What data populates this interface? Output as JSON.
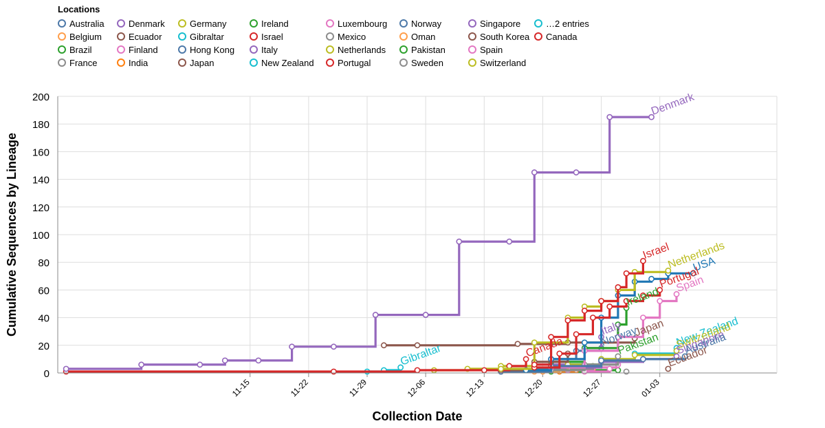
{
  "chart_data": {
    "type": "line",
    "step": true,
    "legend": {
      "title": "Locations",
      "placement": "top-left",
      "entries": [
        {
          "name": "Australia",
          "color": "#4c78a8"
        },
        {
          "name": "Belgium",
          "color": "#ff9e4a"
        },
        {
          "name": "Brazil",
          "color": "#2ca02c"
        },
        {
          "name": "France",
          "color": "#8c8c8c"
        },
        {
          "name": "Denmark",
          "color": "#9467bd"
        },
        {
          "name": "Ecuador",
          "color": "#8c564b"
        },
        {
          "name": "Finland",
          "color": "#e377c2"
        },
        {
          "name": "India",
          "color": "#ff7f0e"
        },
        {
          "name": "Germany",
          "color": "#bcbd22"
        },
        {
          "name": "Gibraltar",
          "color": "#17becf"
        },
        {
          "name": "Hong Kong",
          "color": "#4c78a8"
        },
        {
          "name": "Japan",
          "color": "#8c564b"
        },
        {
          "name": "Ireland",
          "color": "#2ca02c"
        },
        {
          "name": "Israel",
          "color": "#d62728"
        },
        {
          "name": "Italy",
          "color": "#9467bd"
        },
        {
          "name": "New Zealand",
          "color": "#17becf"
        },
        {
          "name": "Luxembourg",
          "color": "#e377c2"
        },
        {
          "name": "Mexico",
          "color": "#8c8c8c"
        },
        {
          "name": "Netherlands",
          "color": "#bcbd22"
        },
        {
          "name": "Portugal",
          "color": "#d62728"
        },
        {
          "name": "Norway",
          "color": "#4c78a8"
        },
        {
          "name": "Oman",
          "color": "#ff9e4a"
        },
        {
          "name": "Pakistan",
          "color": "#2ca02c"
        },
        {
          "name": "Sweden",
          "color": "#8c8c8c"
        },
        {
          "name": "Singapore",
          "color": "#9467bd"
        },
        {
          "name": "South Korea",
          "color": "#8c564b"
        },
        {
          "name": "Spain",
          "color": "#e377c2"
        },
        {
          "name": "Switzerland",
          "color": "#bcbd22"
        },
        {
          "name": "…2 entries",
          "color": "#17becf"
        },
        {
          "name": "Canada",
          "color": "#d62728"
        }
      ]
    },
    "xlabel": "Collection Date",
    "ylabel": "Cumulative Sequences by Lineage",
    "x_domain_days": [
      -23,
      63
    ],
    "x_ticks": [
      {
        "day": 0,
        "label": "11-15"
      },
      {
        "day": 7,
        "label": "11-22"
      },
      {
        "day": 14,
        "label": "11-29"
      },
      {
        "day": 21,
        "label": "12-06"
      },
      {
        "day": 28,
        "label": "12-13"
      },
      {
        "day": 35,
        "label": "12-20"
      },
      {
        "day": 42,
        "label": "12-27"
      },
      {
        "day": 49,
        "label": "01-03"
      }
    ],
    "ylim": [
      0,
      200
    ],
    "y_ticks": [
      0,
      20,
      40,
      60,
      80,
      100,
      120,
      140,
      160,
      180,
      200
    ],
    "series": [
      {
        "name": "Brazil",
        "color": "#2ca02c",
        "label": "",
        "points": [
          [
            36,
            1
          ],
          [
            40,
            2
          ],
          [
            44,
            2
          ]
        ]
      },
      {
        "name": "Oman",
        "color": "#ff9e4a",
        "label": "",
        "points": [
          [
            35,
            1
          ],
          [
            38,
            2
          ],
          [
            41,
            3
          ]
        ]
      },
      {
        "name": "India",
        "color": "#ff7f0e",
        "label": "",
        "points": [
          [
            37,
            1
          ],
          [
            39,
            2
          ]
        ]
      },
      {
        "name": "Belgium",
        "color": "#ff9e4a",
        "label": "",
        "points": [
          [
            34,
            1
          ],
          [
            37,
            3
          ],
          [
            40,
            4
          ]
        ]
      },
      {
        "name": "Finland",
        "color": "#e377c2",
        "label": "",
        "points": [
          [
            38,
            2
          ],
          [
            41,
            4
          ],
          [
            44,
            6
          ]
        ]
      },
      {
        "name": "Luxembourg",
        "color": "#e377c2",
        "label": "",
        "points": [
          [
            40,
            1
          ],
          [
            43,
            3
          ]
        ]
      },
      {
        "name": "Sweden",
        "color": "#8c8c8c",
        "label": "",
        "points": [
          [
            45,
            1
          ]
        ]
      },
      {
        "name": "Ecuador",
        "color": "#8c564b",
        "label": "Ecuador",
        "points": [
          [
            50,
            3
          ]
        ]
      },
      {
        "name": "Mexico",
        "color": "#8c8c8c",
        "label": "",
        "points": [
          [
            38,
            3
          ],
          [
            41,
            5
          ]
        ]
      },
      {
        "name": "Hong Kong",
        "color": "#4c78a8",
        "label": "",
        "points": [
          [
            30,
            1
          ],
          [
            34,
            3
          ],
          [
            38,
            5
          ]
        ]
      },
      {
        "name": "Norway",
        "color": "#4c78a8",
        "label": "Norway",
        "points": [
          [
            33,
            2
          ],
          [
            36,
            10
          ],
          [
            39,
            16
          ],
          [
            42,
            18
          ]
        ]
      },
      {
        "name": "Pakistan",
        "color": "#2ca02c",
        "label": "Pakistan",
        "points": [
          [
            38,
            6
          ],
          [
            42,
            10
          ],
          [
            44,
            12
          ]
        ]
      },
      {
        "name": "Gibraltar",
        "color": "#17becf",
        "label": "Gibraltar",
        "points": [
          [
            14,
            1
          ],
          [
            16,
            2
          ],
          [
            18,
            4
          ]
        ]
      },
      {
        "name": "Germany",
        "color": "#bcbd22",
        "label": "",
        "points": [
          [
            22,
            2
          ],
          [
            26,
            3
          ],
          [
            30,
            5
          ],
          [
            34,
            8
          ]
        ]
      },
      {
        "name": "Italy",
        "color": "#9467bd",
        "label": "Italy",
        "points": [
          [
            36,
            6
          ],
          [
            40,
            18
          ],
          [
            42,
            26
          ]
        ]
      },
      {
        "name": "Japan",
        "color": "#8c564b",
        "label": "Japan",
        "points": [
          [
            16,
            20
          ],
          [
            20,
            20
          ],
          [
            32,
            21
          ],
          [
            38,
            22
          ],
          [
            46,
            25
          ]
        ]
      },
      {
        "name": "Ireland",
        "color": "#2ca02c",
        "label": "Ireland",
        "points": [
          [
            36,
            8
          ],
          [
            40,
            18
          ],
          [
            44,
            35
          ],
          [
            45,
            47
          ]
        ]
      },
      {
        "name": "New Zealand",
        "color": "#17becf",
        "label": "New Zealand",
        "points": [
          [
            33,
            2
          ],
          [
            38,
            6
          ],
          [
            42,
            9
          ],
          [
            46,
            14
          ],
          [
            51,
            18
          ]
        ]
      },
      {
        "name": "Switzerland",
        "color": "#bcbd22",
        "label": "Switzerland",
        "points": [
          [
            34,
            2
          ],
          [
            38,
            6
          ],
          [
            42,
            10
          ],
          [
            46,
            13
          ],
          [
            51,
            16
          ]
        ]
      },
      {
        "name": "Singapore",
        "color": "#9467bd",
        "label": "Singapore",
        "points": [
          [
            30,
            1
          ],
          [
            36,
            4
          ],
          [
            42,
            8
          ],
          [
            47,
            10
          ],
          [
            51,
            12
          ]
        ]
      },
      {
        "name": "France",
        "color": "#8c8c8c",
        "label": "",
        "points": [
          [
            36,
            2
          ],
          [
            40,
            6
          ],
          [
            44,
            12
          ]
        ]
      },
      {
        "name": "Spain",
        "color": "#e377c2",
        "label": "Spain",
        "points": [
          [
            36,
            4
          ],
          [
            40,
            16
          ],
          [
            44,
            26
          ],
          [
            47,
            40
          ],
          [
            49,
            52
          ],
          [
            51,
            57
          ]
        ]
      },
      {
        "name": "Australia",
        "color": "#4c78a8",
        "label": "Australia",
        "points": [
          [
            30,
            1
          ],
          [
            36,
            5
          ],
          [
            42,
            9
          ],
          [
            47,
            10
          ],
          [
            52,
            12
          ]
        ]
      },
      {
        "name": "South Korea",
        "color": "#8c564b",
        "label": "",
        "points": [
          [
            30,
            2
          ],
          [
            34,
            8
          ],
          [
            38,
            14
          ]
        ]
      },
      {
        "name": "Canada",
        "color": "#d62728",
        "label": "Canada",
        "points": [
          [
            -22,
            1
          ],
          [
            10,
            1
          ],
          [
            20,
            2
          ],
          [
            28,
            2
          ],
          [
            31,
            5
          ],
          [
            33,
            10
          ]
        ]
      },
      {
        "name": "USA",
        "color": "#1f77b4",
        "label": "USA",
        "points": [
          [
            33,
            2
          ],
          [
            36,
            10
          ],
          [
            40,
            22
          ],
          [
            42,
            40
          ],
          [
            44,
            56
          ],
          [
            46,
            66
          ],
          [
            48,
            68
          ],
          [
            50,
            72
          ],
          [
            53,
            72
          ]
        ]
      },
      {
        "name": "Netherlands",
        "color": "#bcbd22",
        "label": "Netherlands",
        "points": [
          [
            30,
            3
          ],
          [
            34,
            22
          ],
          [
            38,
            40
          ],
          [
            40,
            48
          ],
          [
            42,
            52
          ],
          [
            44,
            60
          ],
          [
            46,
            73
          ],
          [
            50,
            74
          ]
        ]
      },
      {
        "name": "Portugal",
        "color": "#d62728",
        "label": "Portugal",
        "points": [
          [
            34,
            4
          ],
          [
            37,
            14
          ],
          [
            39,
            28
          ],
          [
            41,
            40
          ],
          [
            43,
            48
          ],
          [
            45,
            52
          ],
          [
            47,
            56
          ],
          [
            49,
            60
          ]
        ]
      },
      {
        "name": "Israel",
        "color": "#d62728",
        "label": "Israel",
        "points": [
          [
            34,
            6
          ],
          [
            36,
            26
          ],
          [
            38,
            38
          ],
          [
            40,
            45
          ],
          [
            42,
            52
          ],
          [
            44,
            62
          ],
          [
            45,
            72
          ],
          [
            47,
            81
          ]
        ]
      },
      {
        "name": "Denmark",
        "color": "#9467bd",
        "label": "Denmark",
        "points": [
          [
            -22,
            3
          ],
          [
            -13,
            6
          ],
          [
            -6,
            6
          ],
          [
            -3,
            9
          ],
          [
            1,
            9
          ],
          [
            5,
            19
          ],
          [
            10,
            19
          ],
          [
            15,
            42
          ],
          [
            21,
            42
          ],
          [
            25,
            95
          ],
          [
            31,
            95
          ],
          [
            34,
            145
          ],
          [
            39,
            145
          ],
          [
            43,
            185
          ],
          [
            48,
            185
          ]
        ]
      }
    ]
  }
}
